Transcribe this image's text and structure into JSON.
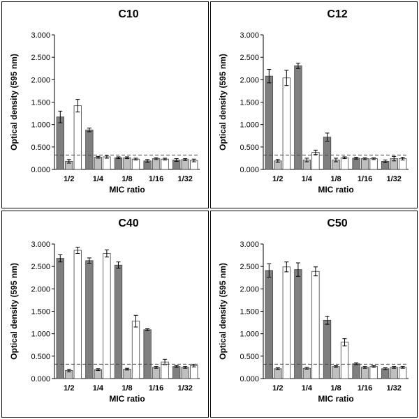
{
  "chart_data": [
    {
      "type": "bar",
      "title": "C10",
      "xlabel": "MIC ratio",
      "ylabel": "Optical density (595 nm)",
      "categories": [
        "1/2",
        "1/4",
        "1/8",
        "1/16",
        "1/32"
      ],
      "ylim": [
        0,
        3
      ],
      "yticks": [
        "0.000",
        "0.500",
        "1.000",
        "1.500",
        "2.000",
        "2.500",
        "3.000"
      ],
      "threshold": 0.32,
      "series": [
        {
          "values": [
            1.17,
            0.88,
            0.26,
            0.19,
            0.21
          ],
          "errors": [
            0.13,
            0.04,
            0.02,
            0.03,
            0.03
          ]
        },
        {
          "values": [
            0.18,
            0.27,
            0.26,
            0.24,
            0.22
          ],
          "errors": [
            0.04,
            0.02,
            0.02,
            0.02,
            0.02
          ]
        },
        {
          "values": [
            1.42,
            0.28,
            0.23,
            0.23,
            0.2
          ],
          "errors": [
            0.14,
            0.03,
            0.02,
            0.02,
            0.03
          ]
        }
      ]
    },
    {
      "type": "bar",
      "title": "C12",
      "xlabel": "MIC ratio",
      "ylabel": "Optical density (595 nm)",
      "categories": [
        "1/2",
        "1/4",
        "1/8",
        "1/16",
        "1/32"
      ],
      "ylim": [
        0,
        3
      ],
      "yticks": [
        "0.000",
        "0.500",
        "1.000",
        "1.500",
        "2.000",
        "2.500",
        "3.000"
      ],
      "threshold": 0.32,
      "series": [
        {
          "values": [
            2.08,
            2.31,
            0.72,
            0.25,
            0.18
          ],
          "errors": [
            0.15,
            0.06,
            0.09,
            0.02,
            0.03
          ]
        },
        {
          "values": [
            0.19,
            0.21,
            0.21,
            0.24,
            0.24
          ],
          "errors": [
            0.03,
            0.04,
            0.04,
            0.02,
            0.05
          ]
        },
        {
          "values": [
            2.04,
            0.38,
            0.26,
            0.24,
            0.24
          ],
          "errors": [
            0.17,
            0.05,
            0.02,
            0.02,
            0.03
          ]
        }
      ]
    },
    {
      "type": "bar",
      "title": "C40",
      "xlabel": "MIC ratio",
      "ylabel": "Optical density (595 nm)",
      "categories": [
        "1/2",
        "1/4",
        "1/8",
        "1/16",
        "1/32"
      ],
      "ylim": [
        0,
        3
      ],
      "yticks": [
        "0.000",
        "0.500",
        "1.000",
        "1.500",
        "2.000",
        "2.500",
        "3.000"
      ],
      "threshold": 0.32,
      "series": [
        {
          "values": [
            2.68,
            2.63,
            2.53,
            1.09,
            0.27
          ],
          "errors": [
            0.08,
            0.06,
            0.07,
            0.02,
            0.02
          ]
        },
        {
          "values": [
            0.18,
            0.2,
            0.21,
            0.25,
            0.25
          ],
          "errors": [
            0.03,
            0.02,
            0.02,
            0.02,
            0.02
          ]
        },
        {
          "values": [
            2.86,
            2.79,
            1.28,
            0.37,
            0.29
          ],
          "errors": [
            0.07,
            0.08,
            0.13,
            0.06,
            0.03
          ]
        }
      ]
    },
    {
      "type": "bar",
      "title": "C50",
      "xlabel": "MIC ratio",
      "ylabel": "Optical density (595 nm)",
      "categories": [
        "1/2",
        "1/4",
        "1/8",
        "1/16",
        "1/32"
      ],
      "ylim": [
        0,
        3
      ],
      "yticks": [
        "0.000",
        "0.500",
        "1.000",
        "1.500",
        "2.000",
        "2.500",
        "3.000"
      ],
      "threshold": 0.32,
      "series": [
        {
          "values": [
            2.41,
            2.43,
            1.3,
            0.33,
            0.22
          ],
          "errors": [
            0.15,
            0.15,
            0.09,
            0.02,
            0.02
          ]
        },
        {
          "values": [
            0.22,
            0.23,
            0.27,
            0.25,
            0.25
          ],
          "errors": [
            0.02,
            0.02,
            0.02,
            0.02,
            0.02
          ]
        },
        {
          "values": [
            2.49,
            2.39,
            0.81,
            0.27,
            0.25
          ],
          "errors": [
            0.11,
            0.1,
            0.08,
            0.02,
            0.02
          ]
        }
      ]
    }
  ],
  "colors": {
    "series": [
      "#7f7f7f",
      "#bfbfbf",
      "#ffffff"
    ],
    "bar_stroke": "#404040",
    "threshold": "#404040"
  }
}
